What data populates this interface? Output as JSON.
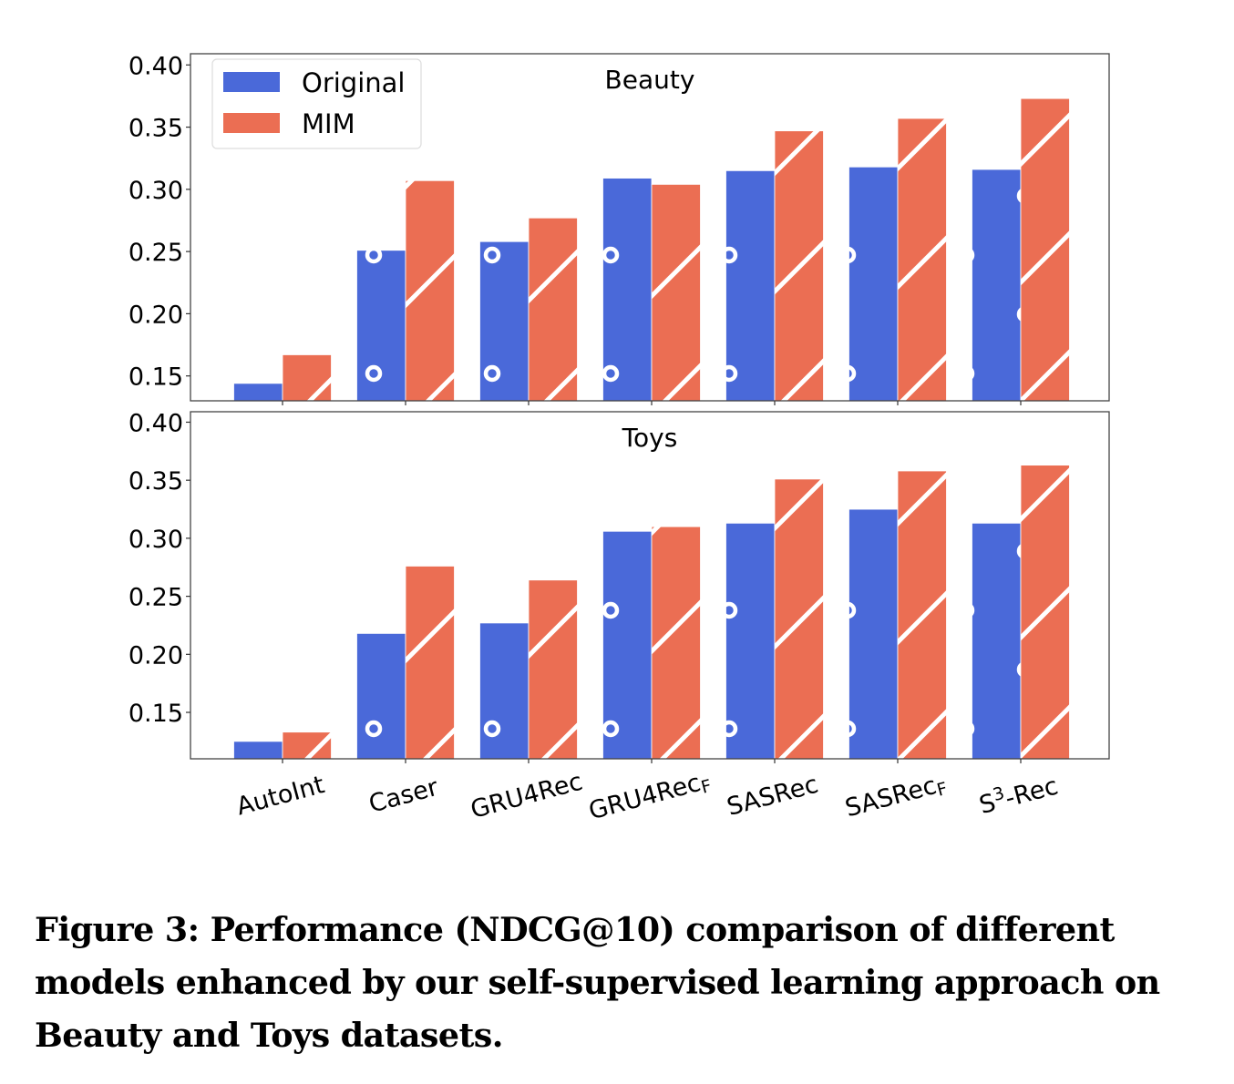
{
  "chart_data": [
    {
      "type": "bar",
      "title": "Beauty",
      "categories": [
        "AutoInt",
        "Caser",
        "GRU4Rec",
        "GRU4Rec_F",
        "SASRec",
        "SASRec_F",
        "S^3-Rec"
      ],
      "series": [
        {
          "name": "Original",
          "values": [
            0.144,
            0.251,
            0.258,
            0.309,
            0.315,
            0.318,
            0.316
          ]
        },
        {
          "name": "MIM",
          "values": [
            0.167,
            0.307,
            0.277,
            0.304,
            0.347,
            0.357,
            0.373
          ]
        }
      ],
      "xlabel": "",
      "ylabel": "",
      "ylim": [
        0.13,
        0.409
      ],
      "yticks": [
        "0.15",
        "0.20",
        "0.25",
        "0.30",
        "0.35",
        "0.40"
      ],
      "legend": "top-left",
      "grid": false
    },
    {
      "type": "bar",
      "title": "Toys",
      "categories": [
        "AutoInt",
        "Caser",
        "GRU4Rec",
        "GRU4Rec_F",
        "SASRec",
        "SASRec_F",
        "S^3-Rec"
      ],
      "series": [
        {
          "name": "Original",
          "values": [
            0.125,
            0.218,
            0.227,
            0.306,
            0.313,
            0.325,
            0.313
          ]
        },
        {
          "name": "MIM",
          "values": [
            0.133,
            0.276,
            0.264,
            0.31,
            0.351,
            0.358,
            0.363
          ]
        }
      ],
      "xlabel": "",
      "ylabel": "",
      "ylim": [
        0.11,
        0.409
      ],
      "yticks": [
        "0.15",
        "0.20",
        "0.25",
        "0.30",
        "0.35",
        "0.40"
      ],
      "legend": "none",
      "grid": false
    }
  ],
  "x_tick_labels": [
    {
      "main": "AutoInt",
      "sub": "",
      "sup": ""
    },
    {
      "main": "Caser",
      "sub": "",
      "sup": ""
    },
    {
      "main": "GRU4Rec",
      "sub": "",
      "sup": ""
    },
    {
      "main": "GRU4Rec",
      "sub": "F",
      "sup": ""
    },
    {
      "main": "SASRec",
      "sub": "",
      "sup": ""
    },
    {
      "main": "SASRec",
      "sub": "F",
      "sup": ""
    },
    {
      "main": "S",
      "sub": "",
      "sup": "3",
      "rest": "-Rec"
    }
  ],
  "legend": {
    "items": [
      {
        "label": "Original",
        "color": "#4a69d9",
        "hatch": "circles"
      },
      {
        "label": "MIM",
        "color": "#eb6e53",
        "hatch": "diagonal"
      }
    ]
  },
  "colors": {
    "original": "#4a69d9",
    "mim": "#eb6e53",
    "hatch": "#ffffff"
  },
  "caption": "Figure 3: Performance (NDCG@10) comparison of different models enhanced by our self-supervised learning approach on Beauty and Toys datasets."
}
